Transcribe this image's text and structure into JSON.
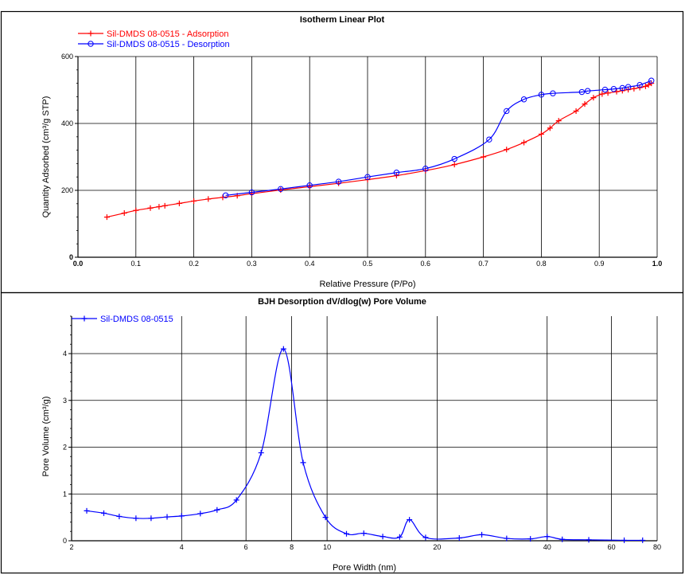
{
  "chart_data": [
    {
      "type": "line",
      "title": "Isotherm Linear Plot",
      "xlabel": "Relative Pressure (P/Po)",
      "ylabel": "Quantity Adsorbed (cm³/g STP)",
      "xlim": [
        0.0,
        1.0
      ],
      "ylim": [
        0,
        600
      ],
      "xticks": [
        "0.0",
        "0.1",
        "0.2",
        "0.3",
        "0.4",
        "0.5",
        "0.6",
        "0.7",
        "0.8",
        "0.9",
        "1.0"
      ],
      "yticks": [
        "0",
        "200",
        "400",
        "600"
      ],
      "grid": true,
      "legend_position": "top-left",
      "series": [
        {
          "name": "Sil-DMDS 08-0515 - Adsorption",
          "color": "#ff0000",
          "marker": "plus",
          "points": [
            [
              0.05,
              120
            ],
            [
              0.08,
              132
            ],
            [
              0.1,
              140
            ],
            [
              0.125,
              147
            ],
            [
              0.14,
              151
            ],
            [
              0.15,
              154
            ],
            [
              0.175,
              161
            ],
            [
              0.2,
              168
            ],
            [
              0.225,
              174
            ],
            [
              0.25,
              179
            ],
            [
              0.275,
              184
            ],
            [
              0.3,
              190
            ],
            [
              0.35,
              201
            ],
            [
              0.4,
              211
            ],
            [
              0.45,
              221
            ],
            [
              0.5,
              232
            ],
            [
              0.55,
              244
            ],
            [
              0.6,
              259
            ],
            [
              0.65,
              277
            ],
            [
              0.7,
              300
            ],
            [
              0.74,
              322
            ],
            [
              0.77,
              343
            ],
            [
              0.8,
              368
            ],
            [
              0.815,
              386
            ],
            [
              0.83,
              408
            ],
            [
              0.86,
              437
            ],
            [
              0.875,
              458
            ],
            [
              0.89,
              477
            ],
            [
              0.905,
              488
            ],
            [
              0.915,
              491
            ],
            [
              0.93,
              495
            ],
            [
              0.94,
              498
            ],
            [
              0.95,
              501
            ],
            [
              0.96,
              504
            ],
            [
              0.97,
              507
            ],
            [
              0.98,
              511
            ],
            [
              0.985,
              515
            ],
            [
              0.99,
              520
            ]
          ]
        },
        {
          "name": "Sil-DMDS 08-0515 - Desorption",
          "color": "#0000ff",
          "marker": "circle",
          "points": [
            [
              0.99,
              528
            ],
            [
              0.97,
              515
            ],
            [
              0.95,
              509
            ],
            [
              0.94,
              506
            ],
            [
              0.925,
              503
            ],
            [
              0.91,
              501
            ],
            [
              0.88,
              497
            ],
            [
              0.87,
              494
            ],
            [
              0.82,
              490
            ],
            [
              0.8,
              486
            ],
            [
              0.77,
              472
            ],
            [
              0.74,
              437
            ],
            [
              0.71,
              352
            ],
            [
              0.65,
              294
            ],
            [
              0.6,
              265
            ],
            [
              0.55,
              253
            ],
            [
              0.5,
              240
            ],
            [
              0.45,
              226
            ],
            [
              0.4,
              215
            ],
            [
              0.35,
              204
            ],
            [
              0.3,
              194
            ],
            [
              0.255,
              185
            ]
          ]
        }
      ]
    },
    {
      "type": "line",
      "title": "BJH Desorption dV/dlog(w) Pore Volume",
      "xlabel": "Pore Width (nm)",
      "ylabel": "Pore Volume (cm³/g)",
      "xscale": "log",
      "xlim": [
        2,
        80
      ],
      "ylim": [
        0,
        4.8
      ],
      "xticks": [
        "2",
        "4",
        "6",
        "8",
        "10",
        "20",
        "40",
        "60",
        "80"
      ],
      "yticks": [
        "0",
        "1",
        "2",
        "3",
        "4"
      ],
      "grid": true,
      "legend_position": "top-left",
      "series": [
        {
          "name": "Sil-DMDS 08-0515",
          "color": "#0000ff",
          "marker": "plus",
          "points": [
            [
              2.2,
              0.64
            ],
            [
              2.45,
              0.59
            ],
            [
              2.7,
              0.52
            ],
            [
              3.0,
              0.48
            ],
            [
              3.3,
              0.48
            ],
            [
              3.65,
              0.51
            ],
            [
              4.0,
              0.53
            ],
            [
              4.5,
              0.58
            ],
            [
              5.0,
              0.66
            ],
            [
              5.65,
              0.87
            ],
            [
              6.6,
              1.88
            ],
            [
              7.6,
              4.1
            ],
            [
              8.6,
              1.67
            ],
            [
              9.9,
              0.5
            ],
            [
              11.3,
              0.15
            ],
            [
              12.6,
              0.16
            ],
            [
              14.2,
              0.09
            ],
            [
              15.8,
              0.08
            ],
            [
              16.8,
              0.45
            ],
            [
              18.6,
              0.07
            ],
            [
              23,
              0.06
            ],
            [
              26.5,
              0.13
            ],
            [
              31,
              0.05
            ],
            [
              36,
              0.04
            ],
            [
              40,
              0.09
            ],
            [
              44,
              0.03
            ],
            [
              52,
              0.02
            ],
            [
              65,
              0.01
            ],
            [
              73,
              0.01
            ]
          ]
        }
      ]
    }
  ]
}
